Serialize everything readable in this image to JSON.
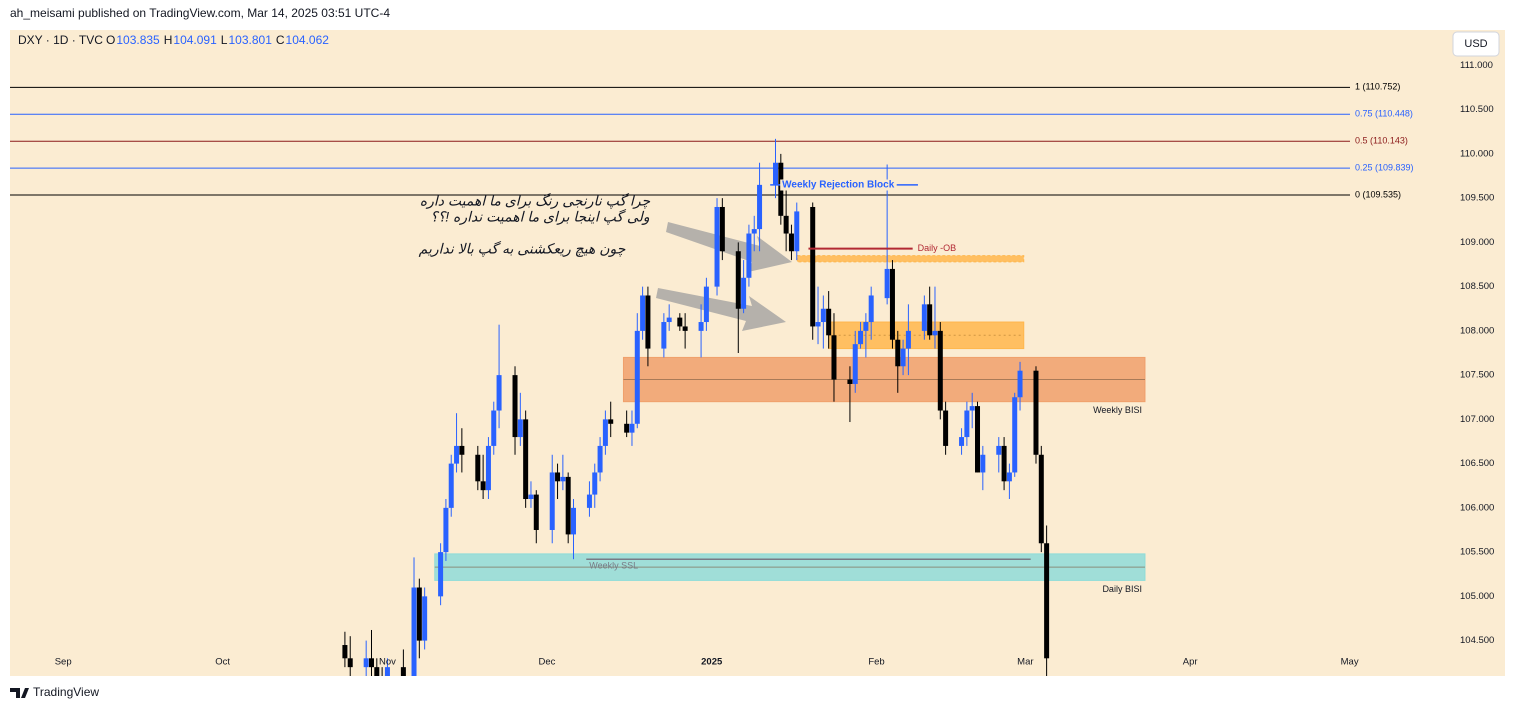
{
  "header": {
    "publisher": "ah_meisami published on TradingView.com, Mar 14, 2025 03:51 UTC-4",
    "symbol": "DXY · 1D · TVC",
    "ohlc": [
      {
        "label": "O",
        "value": 103.835
      },
      {
        "label": "H",
        "value": 104.091
      },
      {
        "label": "L",
        "value": 103.801
      },
      {
        "label": "C",
        "value": 104.062
      }
    ],
    "currency": "USD"
  },
  "footer": "TradingView",
  "chart_data": {
    "type": "candlestick",
    "up_color": "#2962ff",
    "down_color": "#000000",
    "background": "#fbecd2",
    "xlim": [
      -10,
      259
    ],
    "ylim": [
      104.1,
      111.4
    ],
    "xticks": [
      {
        "value": 0,
        "label": "Sep"
      },
      {
        "value": 30,
        "label": "Oct"
      },
      {
        "value": 61,
        "label": "Nov"
      },
      {
        "value": 91,
        "label": "Dec"
      },
      {
        "value": 122,
        "label": "2025"
      },
      {
        "value": 153,
        "label": "Feb"
      },
      {
        "value": 181,
        "label": "Mar"
      },
      {
        "value": 212,
        "label": "Apr"
      },
      {
        "value": 242,
        "label": "May"
      }
    ],
    "yticks": [
      {
        "value": 104.5,
        "label": "104.500"
      },
      {
        "value": 105,
        "label": "105.000"
      },
      {
        "value": 105.5,
        "label": "105.500"
      },
      {
        "value": 106,
        "label": "106.000"
      },
      {
        "value": 106.5,
        "label": "106.500"
      },
      {
        "value": 107,
        "label": "107.000"
      },
      {
        "value": 107.5,
        "label": "107.500"
      },
      {
        "value": 108,
        "label": "108.000"
      },
      {
        "value": 108.5,
        "label": "108.500"
      },
      {
        "value": 109,
        "label": "109.000"
      },
      {
        "value": 109.5,
        "label": "109.500"
      },
      {
        "value": 110,
        "label": "110.000"
      },
      {
        "value": 110.5,
        "label": "110.500"
      },
      {
        "value": 111,
        "label": "111.000"
      }
    ],
    "x": [
      53,
      54,
      57,
      58,
      59,
      60,
      61,
      64,
      65,
      66,
      67,
      68,
      71,
      72,
      73,
      74,
      75,
      78,
      79,
      80,
      81,
      82,
      85,
      86,
      87,
      88,
      89,
      92,
      93,
      94,
      95,
      96,
      99,
      100,
      101,
      102,
      103,
      106,
      107,
      108,
      109,
      110,
      113,
      114,
      116,
      117,
      120,
      121,
      123,
      124,
      127,
      128,
      129,
      130,
      131,
      134,
      135,
      136,
      137,
      138,
      141,
      142,
      143,
      144,
      145,
      148,
      149,
      150,
      151,
      152,
      155,
      156,
      157,
      158,
      159,
      162,
      163,
      164,
      165,
      166,
      169,
      170,
      171,
      172,
      173,
      176,
      177,
      178,
      179,
      180,
      183,
      184,
      185
    ],
    "open": [
      104.45,
      104.3,
      104.2,
      104.3,
      104.2,
      104.0,
      103.9,
      104.2,
      103.8,
      103.4,
      105.1,
      104.5,
      105.0,
      105.5,
      106.0,
      106.5,
      106.7,
      106.6,
      106.3,
      106.2,
      106.7,
      107.1,
      107.5,
      106.8,
      107.0,
      106.1,
      106.15,
      105.75,
      106.4,
      106.3,
      106.35,
      105.7,
      106.0,
      106.15,
      106.4,
      106.7,
      107.0,
      106.95,
      106.85,
      106.95,
      108.0,
      108.4,
      107.8,
      108.1,
      108.15,
      108.05,
      108.0,
      108.1,
      108.5,
      109.4,
      108.9,
      108.25,
      108.6,
      109.1,
      109.15,
      109.65,
      109.9,
      109.3,
      109.1,
      108.9,
      109.4,
      108.05,
      108.1,
      108.25,
      107.95,
      107.45,
      107.4,
      107.85,
      108.0,
      108.1,
      108.37,
      108.7,
      107.9,
      107.6,
      107.8,
      108.0,
      108.3,
      107.95,
      108.0,
      107.1,
      106.7,
      106.8,
      107.1,
      107.15,
      106.4,
      106.6,
      106.7,
      106.3,
      106.4,
      107.25,
      107.55,
      106.6,
      105.6
    ],
    "high": [
      104.6,
      104.55,
      104.5,
      104.62,
      104.3,
      104.2,
      104.3,
      104.4,
      104.1,
      105.44,
      105.2,
      105.1,
      105.6,
      106.1,
      106.6,
      107.07,
      106.9,
      106.7,
      106.6,
      106.8,
      107.2,
      108.07,
      107.6,
      107.3,
      107.1,
      106.3,
      106.2,
      106.6,
      106.5,
      106.6,
      106.4,
      106.1,
      106.3,
      106.5,
      106.8,
      107.1,
      107.2,
      107.1,
      107.1,
      108.2,
      108.5,
      108.5,
      108.2,
      108.3,
      108.2,
      108.2,
      108.3,
      108.6,
      109.5,
      109.5,
      109.0,
      108.8,
      109.2,
      109.3,
      109.9,
      110.17,
      110.0,
      109.7,
      109.2,
      109.45,
      109.45,
      108.5,
      108.4,
      108.45,
      108.2,
      107.6,
      108.0,
      108.1,
      108.2,
      108.5,
      109.88,
      108.8,
      108.0,
      107.9,
      108.3,
      108.4,
      108.5,
      108.5,
      108.1,
      107.2,
      106.9,
      107.2,
      107.3,
      107.2,
      106.7,
      106.8,
      106.8,
      106.5,
      107.3,
      107.65,
      107.6,
      106.7,
      105.8
    ],
    "low": [
      104.2,
      104.1,
      104.0,
      104.1,
      103.9,
      103.8,
      103.7,
      103.5,
      103.4,
      103.37,
      104.3,
      104.4,
      104.9,
      105.4,
      105.9,
      106.4,
      106.4,
      106.2,
      106.1,
      106.1,
      106.6,
      106.9,
      106.6,
      106.7,
      106.0,
      106.0,
      105.6,
      105.6,
      106.1,
      106.2,
      105.6,
      105.42,
      105.9,
      106.0,
      106.3,
      106.6,
      106.8,
      106.8,
      106.7,
      106.9,
      107.9,
      107.6,
      107.7,
      108.0,
      108.0,
      107.8,
      107.7,
      108.0,
      108.4,
      108.8,
      107.75,
      108.2,
      108.5,
      108.9,
      108.9,
      109.5,
      109.2,
      108.9,
      108.8,
      108.8,
      107.9,
      107.85,
      107.8,
      107.8,
      107.2,
      106.97,
      107.3,
      107.8,
      107.7,
      107.9,
      108.3,
      107.8,
      107.3,
      107.5,
      107.5,
      107.9,
      107.9,
      107.8,
      107.0,
      106.6,
      106.6,
      106.7,
      106.9,
      106.4,
      106.2,
      106.4,
      106.2,
      106.1,
      106.35,
      107.1,
      106.5,
      105.5,
      104.1
    ],
    "close": [
      104.3,
      104.2,
      104.3,
      104.2,
      104.0,
      103.9,
      104.2,
      103.8,
      103.4,
      105.1,
      104.5,
      105.0,
      105.5,
      106.0,
      106.5,
      106.7,
      106.6,
      106.3,
      106.2,
      106.7,
      107.1,
      107.5,
      106.8,
      107.0,
      106.1,
      106.15,
      105.75,
      106.4,
      106.3,
      106.35,
      105.7,
      106.0,
      106.15,
      106.4,
      106.7,
      107.0,
      106.95,
      106.85,
      106.95,
      108.0,
      108.4,
      107.8,
      108.1,
      108.15,
      108.05,
      108.0,
      108.1,
      108.5,
      109.4,
      108.9,
      108.25,
      108.6,
      109.1,
      109.15,
      109.65,
      109.9,
      109.3,
      109.1,
      108.9,
      109.35,
      108.05,
      108.1,
      108.25,
      107.95,
      107.45,
      107.4,
      107.85,
      108.0,
      108.1,
      108.4,
      108.7,
      107.9,
      107.6,
      107.8,
      108.0,
      108.3,
      107.95,
      108.0,
      107.1,
      106.7,
      106.8,
      107.1,
      107.15,
      106.4,
      106.6,
      106.7,
      106.3,
      106.4,
      107.25,
      107.55,
      106.6,
      105.6,
      104.3
    ],
    "fib_levels": [
      {
        "label": "1 (110.752)",
        "value": 110.752,
        "color": "#000000"
      },
      {
        "label": "0.75 (110.448)",
        "value": 110.448,
        "color": "#2962ff"
      },
      {
        "label": "0.5 (110.143)",
        "value": 110.143,
        "color": "#8b1a1a"
      },
      {
        "label": "0.25 (109.839)",
        "value": 109.839,
        "color": "#2962ff"
      },
      {
        "label": "0 (109.535)",
        "value": 109.535,
        "color": "#000000"
      }
    ],
    "zones": [
      {
        "x": [
          138.1,
          180.7
        ],
        "y": [
          108.78,
          108.85
        ],
        "color": "#ffb74d"
      },
      {
        "x": [
          144,
          180.7
        ],
        "y": [
          107.8,
          108.1
        ],
        "color": "#ffb74d"
      },
      {
        "label": "Weekly BISI",
        "x": [
          105.4,
          203.5
        ],
        "y": [
          107.2,
          107.7
        ],
        "color": "#f0a06c"
      },
      {
        "label": "Daily BISI",
        "x": [
          69.9,
          203.5
        ],
        "y": [
          105.18,
          105.48
        ],
        "color": "#8fdcd9"
      }
    ],
    "segments": [
      {
        "label": "Weekly Rejection Block",
        "x": [
          133,
          160.8
        ],
        "y": 109.65,
        "color": "#2962ff"
      },
      {
        "label": "Daily -OB",
        "x": [
          140.2,
          159.8
        ],
        "y": 108.93,
        "color": "#b22833"
      },
      {
        "label": "Weekly SSL",
        "x": [
          98.4,
          182
        ],
        "y": 105.42,
        "color": "#787b86"
      }
    ],
    "annotations": [
      "چرا گپ نارنجی رنگ برای ما اهمیت داره",
      "ولی گپ اینجا برای ما اهمیت نداره !؟؟",
      "چون هیچ ریعکشنی به گپ بالا نداریم"
    ]
  }
}
